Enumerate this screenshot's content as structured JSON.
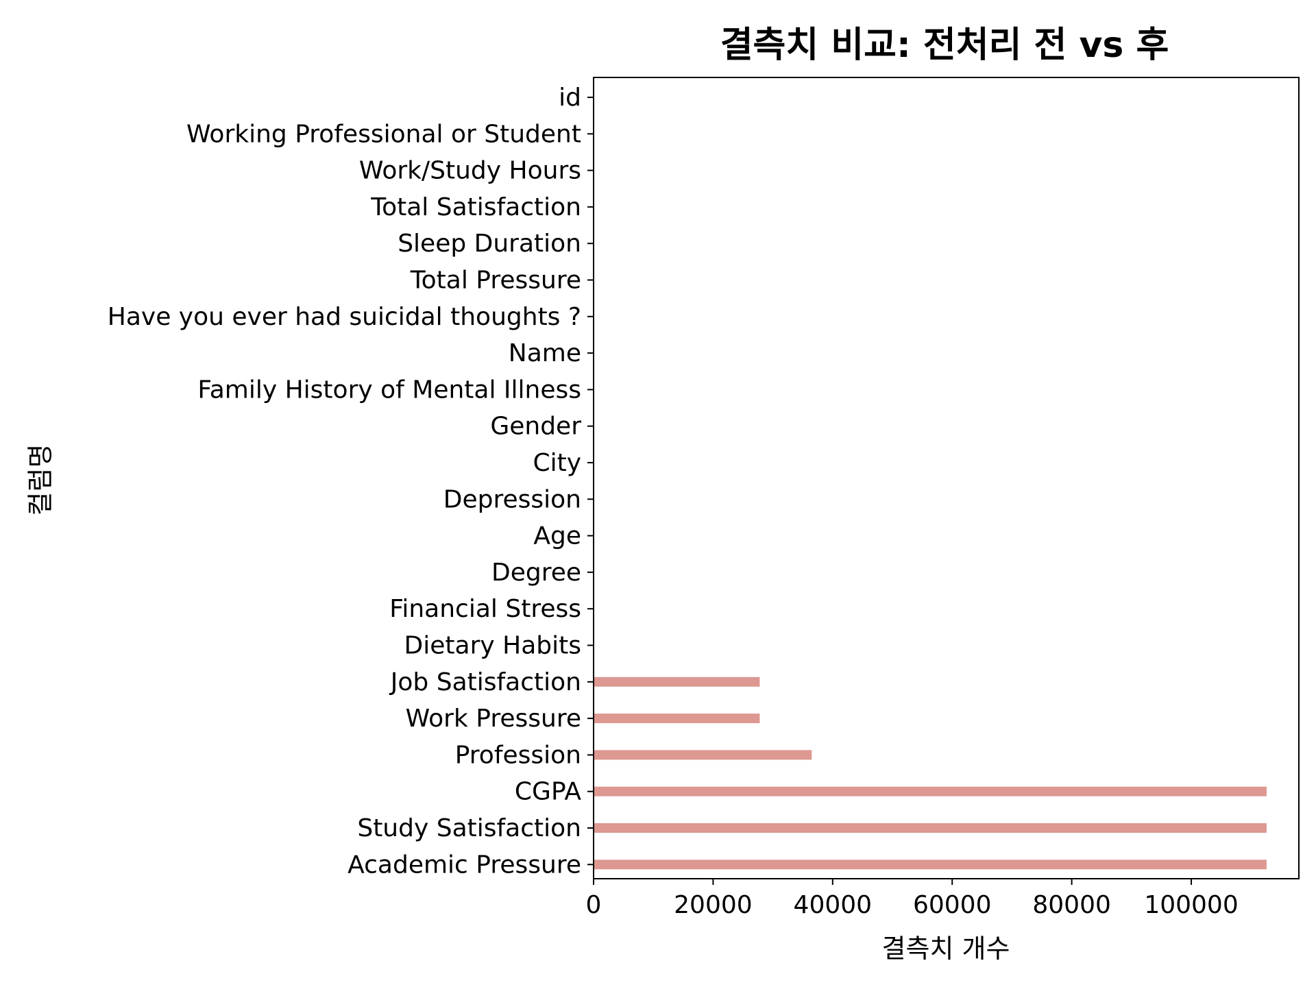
{
  "chart_data": {
    "type": "bar",
    "orientation": "horizontal",
    "title": "결측치 비교: 전처리 전 vs 후",
    "xlabel": "결측치 개수",
    "ylabel": "컬럼명",
    "xlim": [
      0,
      118000
    ],
    "xticks": [
      "0",
      "20000",
      "40000",
      "60000",
      "80000",
      "100000"
    ],
    "xtick_values": [
      0,
      20000,
      40000,
      60000,
      80000,
      100000
    ],
    "grid": false,
    "legend": "none",
    "bar_color": "#dd9891",
    "categories": [
      "id",
      "Working Professional or Student",
      "Work/Study Hours",
      "Total Satisfaction",
      "Sleep Duration",
      "Total Pressure",
      "Have you ever had suicidal thoughts ?",
      "Name",
      "Family History of Mental Illness",
      "Gender",
      "City",
      "Depression",
      "Age",
      "Degree",
      "Financial Stress",
      "Dietary Habits",
      "Job Satisfaction",
      "Work Pressure",
      "Profession",
      "CGPA",
      "Study Satisfaction",
      "Academic Pressure"
    ],
    "values": [
      0,
      0,
      0,
      0,
      0,
      0,
      0,
      0,
      0,
      0,
      0,
      0,
      0,
      0,
      0,
      0,
      27800,
      27800,
      36500,
      112600,
      112600,
      112600
    ]
  }
}
